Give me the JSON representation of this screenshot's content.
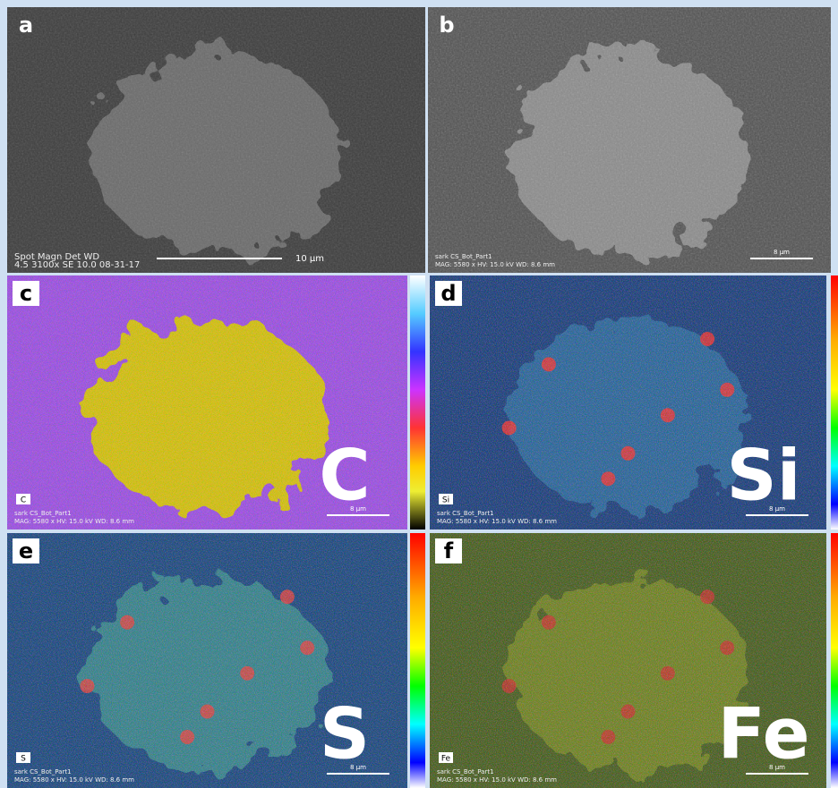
{
  "panels": [
    {
      "label": "a",
      "info": [
        "Spot Magn   Det  WD",
        "4.5   3100x   SE   10.0  08-31-17"
      ],
      "scale": "10 µm"
    },
    {
      "label": "b",
      "info": [
        "sark CS_Bot_Part1",
        "MAG: 5580 x  HV: 15.0 kV  WD: 8.6 mm"
      ],
      "scale": "8 µm"
    },
    {
      "label": "c",
      "element": "C",
      "tag": "C",
      "info": [
        "sark CS_Bot_Part1",
        "MAG: 5580 x  HV: 15.0 kV  WD: 8.6 mm"
      ],
      "scale": "8 µm"
    },
    {
      "label": "d",
      "element": "Si",
      "tag": "Si",
      "info": [
        "sark CS_Bot_Part1",
        "MAG: 5580 x  HV: 15.0 kV  WD: 8.6 mm"
      ],
      "scale": "8 µm"
    },
    {
      "label": "e",
      "element": "S",
      "tag": "S",
      "info": [
        "sark CS_Bot_Part1",
        "MAG: 5580 x  HV: 15.0 kV  WD: 8.6 mm"
      ],
      "scale": "8 µm"
    },
    {
      "label": "f",
      "element": "Fe",
      "tag": "Fe",
      "info": [
        "sark CS_Bot_Part1",
        "MAG: 5580 x  HV: 15.0 kV  WD: 8.6 mm"
      ],
      "scale": "8 µm"
    }
  ]
}
